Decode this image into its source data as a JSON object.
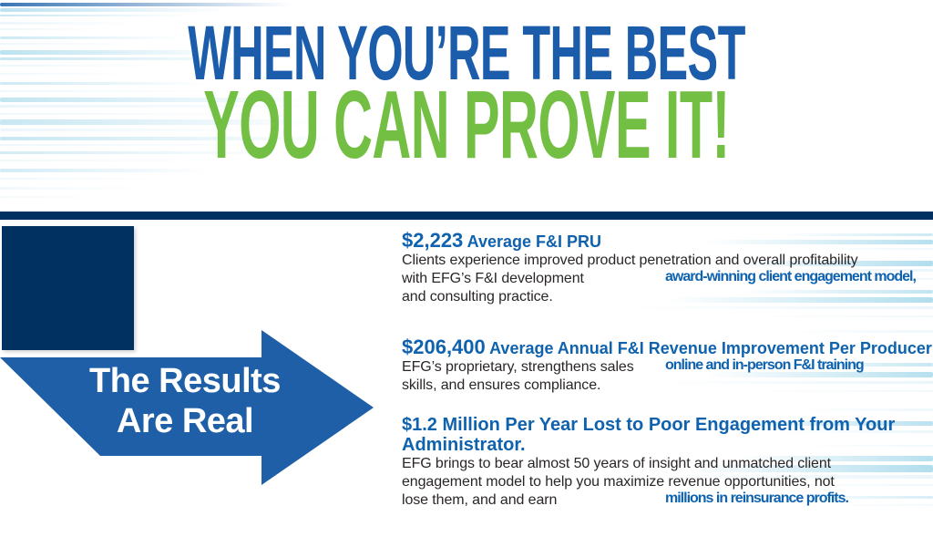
{
  "headline": {
    "line1": "WHEN YOU’RE THE BEST",
    "line2": "YOU CAN PROVE IT!"
  },
  "arrow_caption": {
    "line1": "The Results",
    "line2": "Are Real"
  },
  "stats": [
    {
      "heading": [
        {
          "t": "$2,223",
          "s": "amount"
        },
        {
          "t": " Average F&I PRU",
          "s": "label"
        }
      ],
      "body": [
        [
          {
            "t": "Clients experience improved product penetration and overall profitability"
          }
        ],
        [
          {
            "t": "with EFG’s "
          },
          {
            "t": "award-winning client engagement model,",
            "s": "hl"
          },
          {
            "t": " F&I development"
          }
        ],
        [
          {
            "t": "and consulting practice."
          }
        ]
      ]
    },
    {
      "heading": [
        {
          "t": "$206,400",
          "s": "amount"
        },
        {
          "t": " Average Annual F&I Revenue Improvement Per Producer",
          "s": "label"
        }
      ],
      "body": [
        [
          {
            "t": "EFG’s proprietary, "
          },
          {
            "t": "online and in-person F&I training",
            "s": "hl"
          },
          {
            "t": " strengthens sales"
          }
        ],
        [
          {
            "t": "skills, and ensures compliance."
          }
        ]
      ]
    },
    {
      "heading": [
        {
          "t": "$1.2 Million Per Year Lost to Poor Engagement from Your",
          "s": "big"
        },
        {
          "br": true
        },
        {
          "t": "Administrator.",
          "s": "big"
        }
      ],
      "body": [
        [
          {
            "t": "EFG brings to bear almost 50 years of insight and unmatched client"
          }
        ],
        [
          {
            "t": "engagement model to help you maximize revenue opportunities, not"
          }
        ],
        [
          {
            "t": "lose them, and and earn "
          },
          {
            "t": "millions in reinsurance profits.",
            "s": "hl"
          }
        ]
      ]
    }
  ],
  "colors": {
    "headline_blue": "#1b5cab",
    "headline_green": "#72bf44",
    "navy": "#003161",
    "arrow_blue": "#1e5fa8",
    "stat_blue": "#0f62ae",
    "body_text": "#2a2627",
    "streak_light": "#cfe9f5",
    "streak_medium": "#8fcfe6",
    "streak_dark": "#2f6fb0"
  }
}
